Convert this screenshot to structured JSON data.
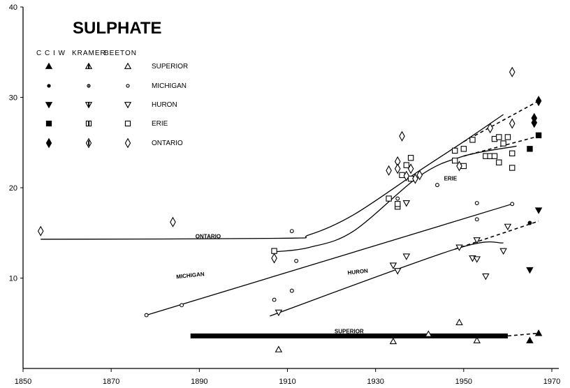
{
  "chart_data": {
    "type": "scatter",
    "title": "SULPHATE",
    "xlabel": "",
    "ylabel": "",
    "xlim": [
      1850,
      1970
    ],
    "ylim": [
      0,
      40
    ],
    "x_ticks": [
      1850,
      1870,
      1890,
      1910,
      1930,
      1950,
      1970
    ],
    "y_ticks": [
      10,
      20,
      30,
      40
    ],
    "source_headers": [
      "C C I W",
      "KRAMER",
      "BEETON"
    ],
    "series": [
      {
        "name": "SUPERIOR",
        "markers": [
          "tri-filled",
          "tri-half",
          "tri-open"
        ],
        "points": {
          "ccjw": [
            [
              1965,
              3.1
            ],
            [
              1967,
              3.9
            ]
          ],
          "kramer": [],
          "beeton": [
            [
              1908,
              2.1
            ],
            [
              1934,
              3.0
            ],
            [
              1942,
              3.8
            ],
            [
              1949,
              5.1
            ],
            [
              1953,
              3.1
            ]
          ]
        },
        "curve": [
          [
            1888,
            3.6
          ],
          [
            1960,
            3.6
          ]
        ],
        "curve_label": "SUPERIOR",
        "dashed": [
          [
            1960,
            3.6
          ],
          [
            1967,
            3.9
          ]
        ]
      },
      {
        "name": "MICHIGAN",
        "markers": [
          "circle-filled",
          "circle-half",
          "circle-open"
        ],
        "points": {
          "ccjw": [
            [
              1965,
              16.1
            ]
          ],
          "kramer": [],
          "beeton": [
            [
              1878,
              5.9
            ],
            [
              1886,
              7.0
            ],
            [
              1907,
              7.6
            ],
            [
              1911,
              8.6
            ],
            [
              1912,
              11.9
            ],
            [
              1911,
              15.2
            ],
            [
              1935,
              18.8
            ],
            [
              1944,
              20.3
            ],
            [
              1953,
              18.3
            ],
            [
              1953,
              16.5
            ],
            [
              1961,
              18.2
            ]
          ]
        },
        "curve": [
          [
            1878,
            5.9
          ],
          [
            1961,
            18.2
          ]
        ],
        "curve_label": "MICHIGAN",
        "dashed": []
      },
      {
        "name": "HURON",
        "markers": [
          "invtri-filled",
          "invtri-half",
          "invtri-open"
        ],
        "points": {
          "ccjw": [
            [
              1967,
              17.5
            ],
            [
              1965,
              10.9
            ]
          ],
          "kramer": [],
          "beeton": [
            [
              1908,
              6.2
            ],
            [
              1934,
              11.4
            ],
            [
              1935,
              10.8
            ],
            [
              1937,
              12.4
            ],
            [
              1937,
              18.3
            ],
            [
              1949,
              13.4
            ],
            [
              1952,
              12.2
            ],
            [
              1953,
              12.1
            ],
            [
              1953,
              14.2
            ],
            [
              1955,
              10.2
            ],
            [
              1959,
              13.0
            ],
            [
              1960,
              15.7
            ]
          ]
        },
        "curve": [
          [
            1906,
            5.8
          ],
          [
            1948,
            13.2
          ],
          [
            1959,
            13.9
          ]
        ],
        "curve_label": "HURON",
        "dashed": [
          [
            1948,
            13.2
          ],
          [
            1967,
            16.3
          ]
        ]
      },
      {
        "name": "ERIE",
        "markers": [
          "square-filled",
          "square-half",
          "square-open"
        ],
        "points": {
          "ccjw": [
            [
              1967,
              25.8
            ],
            [
              1965,
              24.3
            ]
          ],
          "kramer": [],
          "beeton": [
            [
              1907,
              13.0
            ],
            [
              1933,
              18.8
            ],
            [
              1935,
              17.9
            ],
            [
              1935,
              18.2
            ],
            [
              1936,
              21.4
            ],
            [
              1937,
              22.5
            ],
            [
              1938,
              23.3
            ],
            [
              1938,
              21.0
            ],
            [
              1948,
              24.1
            ],
            [
              1948,
              23.0
            ],
            [
              1950,
              24.3
            ],
            [
              1950,
              22.4
            ],
            [
              1952,
              25.3
            ],
            [
              1955,
              23.5
            ],
            [
              1956,
              23.5
            ],
            [
              1957,
              25.4
            ],
            [
              1957,
              23.5
            ],
            [
              1958,
              22.8
            ],
            [
              1958,
              25.6
            ],
            [
              1959,
              24.9
            ],
            [
              1960,
              25.6
            ],
            [
              1961,
              23.8
            ],
            [
              1961,
              22.2
            ]
          ]
        },
        "curve": [
          [
            1907,
            12.9
          ],
          [
            1915,
            13.4
          ],
          [
            1925,
            15.2
          ],
          [
            1940,
            21.3
          ],
          [
            1950,
            23.5
          ],
          [
            1962,
            24.6
          ]
        ],
        "curve_label": "ERIE",
        "dashed": [
          [
            1950,
            23.5
          ],
          [
            1967,
            25.7
          ]
        ]
      },
      {
        "name": "ONTARIO",
        "markers": [
          "diamond-filled",
          "diamond-half",
          "diamond-open"
        ],
        "points": {
          "ccjw": [
            [
              1967,
              29.6
            ],
            [
              1966,
              27.2
            ],
            [
              1966,
              27.7
            ]
          ],
          "kramer": [],
          "beeton": [
            [
              1854,
              15.2
            ],
            [
              1884,
              16.2
            ],
            [
              1907,
              12.2
            ],
            [
              1933,
              21.9
            ],
            [
              1935,
              22.9
            ],
            [
              1935,
              22.1
            ],
            [
              1936,
              25.7
            ],
            [
              1937,
              21.3
            ],
            [
              1938,
              22.1
            ],
            [
              1939,
              21.0
            ],
            [
              1940,
              21.4
            ],
            [
              1949,
              22.4
            ],
            [
              1956,
              26.6
            ],
            [
              1961,
              27.1
            ],
            [
              1961,
              32.8
            ]
          ]
        },
        "curve": [
          [
            1854,
            14.3
          ],
          [
            1908,
            14.4
          ],
          [
            1915,
            14.8
          ],
          [
            1925,
            17.0
          ],
          [
            1940,
            21.9
          ],
          [
            1950,
            25.1
          ],
          [
            1959,
            28.1
          ]
        ],
        "curve_label": "ONTARIO",
        "dashed": [
          [
            1950,
            25.1
          ],
          [
            1967,
            29.6
          ]
        ]
      }
    ]
  }
}
